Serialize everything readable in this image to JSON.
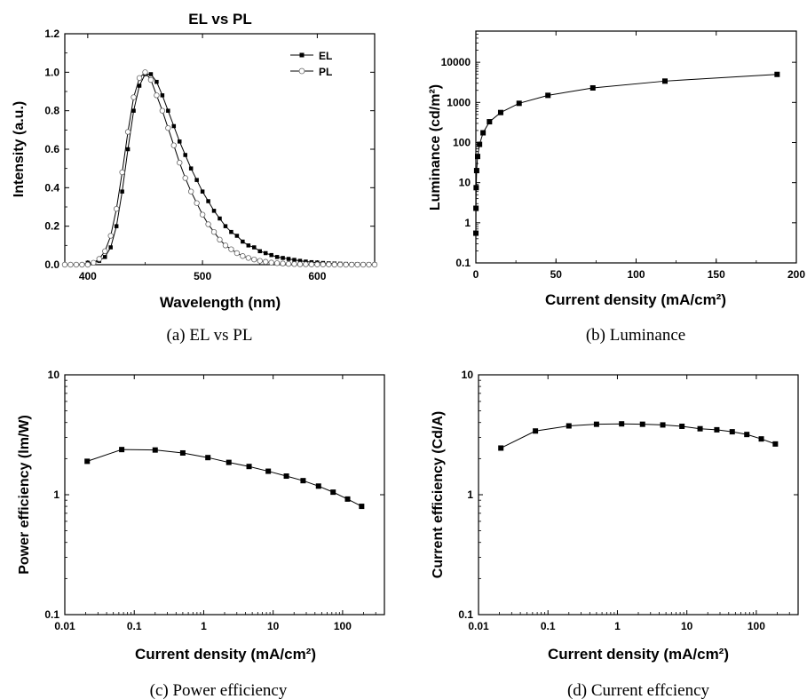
{
  "chart_data": [
    {
      "id": "a",
      "type": "line",
      "title": "EL vs PL",
      "caption": "(a) EL vs PL",
      "xlabel": "Wavelength (nm)",
      "ylabel": "Intensity (a.u.)",
      "xlim": [
        380,
        650
      ],
      "ylim": [
        0,
        1.2
      ],
      "xticks": [
        "400",
        "500",
        "600"
      ],
      "yticks": [
        "0.0",
        "0.2",
        "0.4",
        "0.6",
        "0.8",
        "1.0",
        "1.2"
      ],
      "legend_position": "top-right",
      "series": [
        {
          "name": "EL",
          "marker": "filled-square",
          "x": [
            380,
            385,
            390,
            395,
            400,
            405,
            410,
            415,
            420,
            425,
            430,
            435,
            440,
            445,
            450,
            455,
            460,
            465,
            470,
            475,
            480,
            485,
            490,
            495,
            500,
            505,
            510,
            515,
            520,
            525,
            530,
            535,
            540,
            545,
            550,
            555,
            560,
            565,
            570,
            575,
            580,
            585,
            590,
            595,
            600,
            605,
            610,
            615,
            620,
            625,
            630,
            635,
            640,
            645,
            650
          ],
          "y": [
            0.0,
            0.0,
            0.0,
            0.0,
            0.01,
            0.01,
            0.02,
            0.04,
            0.09,
            0.2,
            0.38,
            0.6,
            0.8,
            0.93,
            0.99,
            0.99,
            0.95,
            0.88,
            0.8,
            0.72,
            0.64,
            0.57,
            0.5,
            0.44,
            0.38,
            0.33,
            0.28,
            0.24,
            0.2,
            0.17,
            0.15,
            0.12,
            0.1,
            0.09,
            0.07,
            0.06,
            0.05,
            0.04,
            0.035,
            0.03,
            0.025,
            0.02,
            0.016,
            0.013,
            0.011,
            0.009,
            0.007,
            0.006,
            0.005,
            0.004,
            0.003,
            0.003,
            0.002,
            0.002,
            0.002
          ]
        },
        {
          "name": "PL",
          "marker": "open-circle",
          "x": [
            380,
            385,
            390,
            395,
            400,
            405,
            410,
            415,
            420,
            425,
            430,
            435,
            440,
            445,
            450,
            455,
            460,
            465,
            470,
            475,
            480,
            485,
            490,
            495,
            500,
            505,
            510,
            515,
            520,
            525,
            530,
            535,
            540,
            545,
            550,
            555,
            560,
            565,
            570,
            575,
            580,
            585,
            590,
            595,
            600,
            605,
            610,
            615,
            620,
            625,
            630,
            635,
            640,
            645,
            650
          ],
          "y": [
            0.0,
            0.0,
            0.0,
            0.0,
            0.0,
            0.01,
            0.03,
            0.07,
            0.15,
            0.29,
            0.48,
            0.69,
            0.87,
            0.97,
            1.0,
            0.96,
            0.88,
            0.8,
            0.71,
            0.62,
            0.53,
            0.45,
            0.38,
            0.32,
            0.26,
            0.21,
            0.17,
            0.13,
            0.1,
            0.08,
            0.06,
            0.045,
            0.035,
            0.027,
            0.02,
            0.015,
            0.011,
            0.008,
            0.006,
            0.004,
            0.003,
            0.002,
            0.002,
            0.001,
            0.001,
            0.001,
            0.001,
            0.0,
            0.0,
            0.0,
            0.0,
            0.0,
            0.0,
            0.0,
            0.0
          ]
        }
      ]
    },
    {
      "id": "b",
      "type": "line",
      "caption": "(b) Luminance",
      "xlabel": "Current density (mA/cm²)",
      "ylabel": "Luminance (cd/m²)",
      "xlim": [
        0,
        200
      ],
      "ylim": [
        0.1,
        60000
      ],
      "yscale": "log",
      "xticks": [
        "0",
        "50",
        "100",
        "150",
        "200"
      ],
      "yticks": [
        "0.1",
        "1",
        "10",
        "100",
        "1000",
        "10000"
      ],
      "series": [
        {
          "marker": "filled-square",
          "x": [
            0.02,
            0.07,
            0.2,
            0.5,
            1.1,
            2.3,
            4.5,
            8.5,
            15.5,
            27,
            45,
            73,
            118,
            188
          ],
          "y": [
            0.55,
            2.3,
            7.5,
            20,
            45,
            90,
            175,
            330,
            560,
            950,
            1500,
            2300,
            3400,
            5000
          ]
        }
      ]
    },
    {
      "id": "c",
      "type": "line",
      "caption": "(c) Power efficiency",
      "xlabel": "Current density (mA/cm²)",
      "ylabel": "Power efficiency (lm/W)",
      "xscale": "log",
      "yscale": "log",
      "xlim": [
        0.01,
        400
      ],
      "ylim": [
        0.1,
        10
      ],
      "xticks": [
        "0.01",
        "0.1",
        "1",
        "10",
        "100"
      ],
      "yticks": [
        "0.1",
        "1",
        "10"
      ],
      "series": [
        {
          "marker": "filled-square",
          "x": [
            0.021,
            0.066,
            0.2,
            0.5,
            1.15,
            2.3,
            4.5,
            8.5,
            15.5,
            27,
            45,
            73,
            118,
            188
          ],
          "y": [
            1.9,
            2.38,
            2.36,
            2.23,
            2.04,
            1.86,
            1.72,
            1.57,
            1.43,
            1.31,
            1.18,
            1.05,
            0.92,
            0.8
          ]
        }
      ]
    },
    {
      "id": "d",
      "type": "line",
      "caption": "(d) Current effciency",
      "xlabel": "Current density (mA/cm²)",
      "ylabel": "Current efficiency (Cd/A)",
      "xscale": "log",
      "yscale": "log",
      "xlim": [
        0.01,
        400
      ],
      "ylim": [
        0.1,
        10
      ],
      "xticks": [
        "0.01",
        "0.1",
        "1",
        "10",
        "100"
      ],
      "yticks": [
        "0.1",
        "1",
        "10"
      ],
      "series": [
        {
          "marker": "filled-square",
          "x": [
            0.021,
            0.066,
            0.2,
            0.5,
            1.15,
            2.3,
            4.5,
            8.5,
            15.5,
            27,
            45,
            73,
            118,
            188
          ],
          "y": [
            2.45,
            3.4,
            3.75,
            3.87,
            3.9,
            3.87,
            3.82,
            3.72,
            3.55,
            3.48,
            3.35,
            3.18,
            2.92,
            2.65
          ]
        }
      ]
    }
  ]
}
